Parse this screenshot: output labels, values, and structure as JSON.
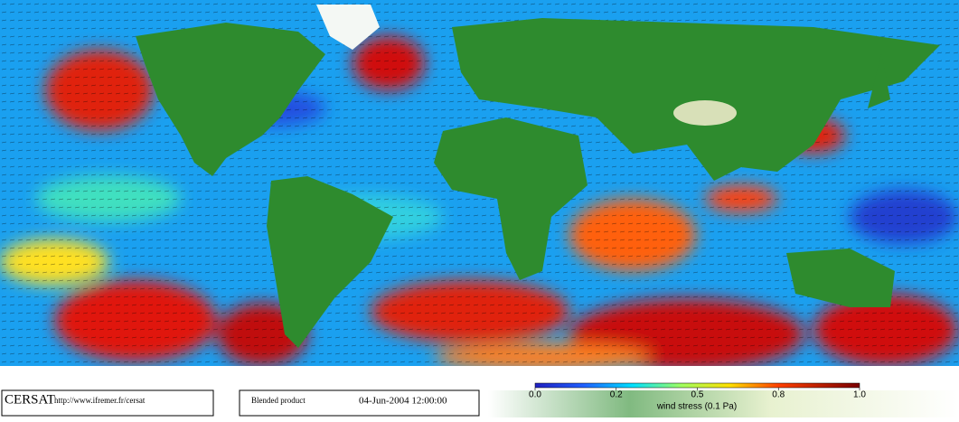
{
  "map": {
    "credit": "CERSAT",
    "url": "http://www.ifremer.fr/cersat",
    "product": "Blended product",
    "date": "04-Jun-2004 12:00:00",
    "colorbar": {
      "label": "wind stress (0.1 Pa)",
      "range": [
        0,
        1
      ],
      "ticks": [
        {
          "value": 0,
          "label": "0.0"
        },
        {
          "value": 0.25,
          "label": "0.2"
        },
        {
          "value": 0.5,
          "label": "0.5"
        },
        {
          "value": 0.75,
          "label": "0.8"
        },
        {
          "value": 1,
          "label": "1.0"
        }
      ]
    }
  }
}
